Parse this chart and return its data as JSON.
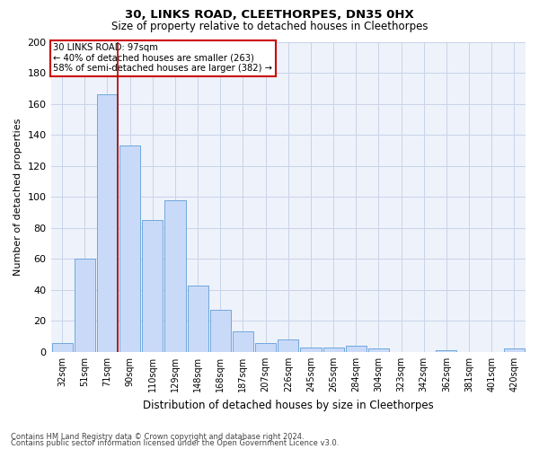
{
  "title1": "30, LINKS ROAD, CLEETHORPES, DN35 0HX",
  "title2": "Size of property relative to detached houses in Cleethorpes",
  "xlabel": "Distribution of detached houses by size in Cleethorpes",
  "ylabel": "Number of detached properties",
  "categories": [
    "32sqm",
    "51sqm",
    "71sqm",
    "90sqm",
    "110sqm",
    "129sqm",
    "148sqm",
    "168sqm",
    "187sqm",
    "207sqm",
    "226sqm",
    "245sqm",
    "265sqm",
    "284sqm",
    "304sqm",
    "323sqm",
    "342sqm",
    "362sqm",
    "381sqm",
    "401sqm",
    "420sqm"
  ],
  "values": [
    6,
    60,
    166,
    133,
    85,
    98,
    43,
    27,
    13,
    6,
    8,
    3,
    3,
    4,
    2,
    0,
    0,
    1,
    0,
    0,
    2
  ],
  "bar_color": "#c9daf8",
  "bar_edge_color": "#6fa8dc",
  "grid_color": "#c8d4e8",
  "bg_color": "#ffffff",
  "plot_bg_color": "#eef2fb",
  "vline_x_index": 2,
  "vline_color": "#aa0000",
  "annotation_text": "30 LINKS ROAD: 97sqm\n← 40% of detached houses are smaller (263)\n58% of semi-detached houses are larger (382) →",
  "annotation_box_color": "#ffffff",
  "annotation_box_edge": "#cc0000",
  "ylim": [
    0,
    200
  ],
  "yticks": [
    0,
    20,
    40,
    60,
    80,
    100,
    120,
    140,
    160,
    180,
    200
  ],
  "footnote1": "Contains HM Land Registry data © Crown copyright and database right 2024.",
  "footnote2": "Contains public sector information licensed under the Open Government Licence v3.0."
}
